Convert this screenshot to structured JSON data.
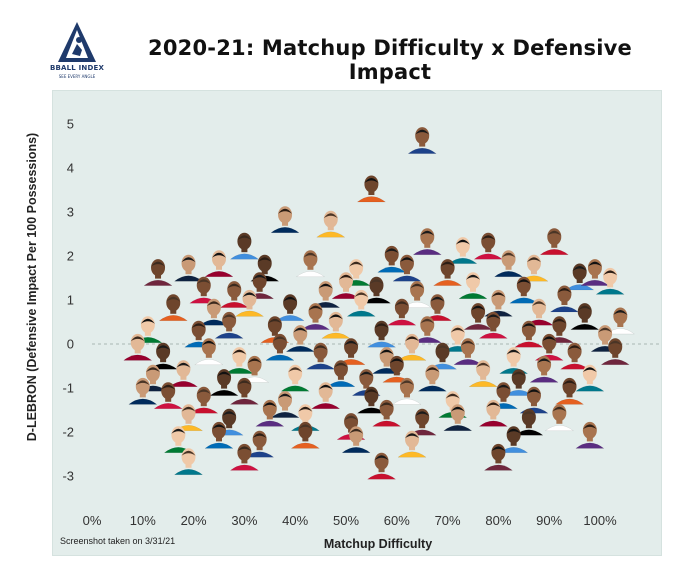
{
  "logo": {
    "name": "BBALL INDEX",
    "tagline": "SEE EVERY ANGLE"
  },
  "title": "2020-21: Matchup Difficulty x Defensive Impact",
  "footnote": "Screenshot taken on 3/31/21",
  "colors": {
    "plot_background": "#e3edeb",
    "reference_line": "#a9b7b3",
    "logo": "#1f3a6b"
  },
  "chart_data": {
    "type": "scatter",
    "title": "2020-21: Matchup Difficulty x Defensive Impact",
    "xlabel": "Matchup Difficulty",
    "ylabel": "D-LEBRON (Defensive Impact Per 100 Possessions)",
    "xlim": [
      -3,
      108
    ],
    "ylim": [
      -3.75,
      5.4
    ],
    "x_ticks": [
      0,
      10,
      20,
      30,
      40,
      50,
      60,
      70,
      80,
      90,
      100
    ],
    "x_tick_labels": [
      "0%",
      "10%",
      "20%",
      "30%",
      "40%",
      "50%",
      "60%",
      "70%",
      "80%",
      "90%",
      "100%"
    ],
    "y_ticks": [
      5,
      4,
      3,
      2,
      1,
      0,
      -1,
      -2,
      -3
    ],
    "y_tick_labels": [
      "5",
      "4",
      "3",
      "2",
      "1",
      "0",
      "-1",
      "-2",
      "-3"
    ],
    "reference_line_y": 0,
    "grid": false,
    "marker": "player headshot",
    "points": [
      {
        "x": 65,
        "y": 4.6
      },
      {
        "x": 55,
        "y": 3.5
      },
      {
        "x": 38,
        "y": 2.8
      },
      {
        "x": 47,
        "y": 2.7
      },
      {
        "x": 30,
        "y": 2.2
      },
      {
        "x": 66,
        "y": 2.3
      },
      {
        "x": 73,
        "y": 2.1
      },
      {
        "x": 78,
        "y": 2.2
      },
      {
        "x": 91,
        "y": 2.3
      },
      {
        "x": 13,
        "y": 1.6
      },
      {
        "x": 19,
        "y": 1.7
      },
      {
        "x": 25,
        "y": 1.8
      },
      {
        "x": 34,
        "y": 1.7
      },
      {
        "x": 43,
        "y": 1.8
      },
      {
        "x": 52,
        "y": 1.6
      },
      {
        "x": 59,
        "y": 1.9
      },
      {
        "x": 62,
        "y": 1.7
      },
      {
        "x": 70,
        "y": 1.6
      },
      {
        "x": 82,
        "y": 1.8
      },
      {
        "x": 87,
        "y": 1.7
      },
      {
        "x": 96,
        "y": 1.5
      },
      {
        "x": 99,
        "y": 1.6
      },
      {
        "x": 102,
        "y": 1.4
      },
      {
        "x": 22,
        "y": 1.2
      },
      {
        "x": 28,
        "y": 1.1
      },
      {
        "x": 33,
        "y": 1.3
      },
      {
        "x": 46,
        "y": 1.1
      },
      {
        "x": 50,
        "y": 1.3
      },
      {
        "x": 56,
        "y": 1.2
      },
      {
        "x": 64,
        "y": 1.1
      },
      {
        "x": 75,
        "y": 1.3
      },
      {
        "x": 85,
        "y": 1.2
      },
      {
        "x": 93,
        "y": 1.0
      },
      {
        "x": 16,
        "y": 0.8
      },
      {
        "x": 24,
        "y": 0.7
      },
      {
        "x": 31,
        "y": 0.9
      },
      {
        "x": 39,
        "y": 0.8
      },
      {
        "x": 44,
        "y": 0.6
      },
      {
        "x": 53,
        "y": 0.9
      },
      {
        "x": 61,
        "y": 0.7
      },
      {
        "x": 68,
        "y": 0.8
      },
      {
        "x": 76,
        "y": 0.6
      },
      {
        "x": 80,
        "y": 0.9
      },
      {
        "x": 88,
        "y": 0.7
      },
      {
        "x": 97,
        "y": 0.6
      },
      {
        "x": 104,
        "y": 0.5
      },
      {
        "x": 11,
        "y": 0.3
      },
      {
        "x": 21,
        "y": 0.2
      },
      {
        "x": 27,
        "y": 0.4
      },
      {
        "x": 36,
        "y": 0.3
      },
      {
        "x": 41,
        "y": 0.1
      },
      {
        "x": 48,
        "y": 0.4
      },
      {
        "x": 57,
        "y": 0.2
      },
      {
        "x": 66,
        "y": 0.3
      },
      {
        "x": 72,
        "y": 0.1
      },
      {
        "x": 79,
        "y": 0.4
      },
      {
        "x": 86,
        "y": 0.2
      },
      {
        "x": 92,
        "y": 0.3
      },
      {
        "x": 101,
        "y": 0.1
      },
      {
        "x": 9,
        "y": -0.1
      },
      {
        "x": 14,
        "y": -0.3
      },
      {
        "x": 23,
        "y": -0.2
      },
      {
        "x": 29,
        "y": -0.4
      },
      {
        "x": 37,
        "y": -0.1
      },
      {
        "x": 45,
        "y": -0.3
      },
      {
        "x": 51,
        "y": -0.2
      },
      {
        "x": 58,
        "y": -0.4
      },
      {
        "x": 63,
        "y": -0.1
      },
      {
        "x": 69,
        "y": -0.3
      },
      {
        "x": 74,
        "y": -0.2
      },
      {
        "x": 83,
        "y": -0.4
      },
      {
        "x": 90,
        "y": -0.1
      },
      {
        "x": 95,
        "y": -0.3
      },
      {
        "x": 103,
        "y": -0.2
      },
      {
        "x": 12,
        "y": -0.8
      },
      {
        "x": 18,
        "y": -0.7
      },
      {
        "x": 26,
        "y": -0.9
      },
      {
        "x": 32,
        "y": -0.6
      },
      {
        "x": 40,
        "y": -0.8
      },
      {
        "x": 49,
        "y": -0.7
      },
      {
        "x": 54,
        "y": -0.9
      },
      {
        "x": 60,
        "y": -0.6
      },
      {
        "x": 67,
        "y": -0.8
      },
      {
        "x": 77,
        "y": -0.7
      },
      {
        "x": 84,
        "y": -0.9
      },
      {
        "x": 89,
        "y": -0.6
      },
      {
        "x": 98,
        "y": -0.8
      },
      {
        "x": 15,
        "y": -1.2
      },
      {
        "x": 22,
        "y": -1.3
      },
      {
        "x": 30,
        "y": -1.1
      },
      {
        "x": 38,
        "y": -1.4
      },
      {
        "x": 46,
        "y": -1.2
      },
      {
        "x": 55,
        "y": -1.3
      },
      {
        "x": 62,
        "y": -1.1
      },
      {
        "x": 71,
        "y": -1.4
      },
      {
        "x": 81,
        "y": -1.2
      },
      {
        "x": 87,
        "y": -1.3
      },
      {
        "x": 94,
        "y": -1.1
      },
      {
        "x": 10,
        "y": -1.1
      },
      {
        "x": 19,
        "y": -1.7
      },
      {
        "x": 27,
        "y": -1.8
      },
      {
        "x": 35,
        "y": -1.6
      },
      {
        "x": 42,
        "y": -1.7
      },
      {
        "x": 51,
        "y": -1.9
      },
      {
        "x": 58,
        "y": -1.6
      },
      {
        "x": 65,
        "y": -1.8
      },
      {
        "x": 72,
        "y": -1.7
      },
      {
        "x": 79,
        "y": -1.6
      },
      {
        "x": 86,
        "y": -1.8
      },
      {
        "x": 92,
        "y": -1.7
      },
      {
        "x": 17,
        "y": -2.2
      },
      {
        "x": 25,
        "y": -2.1
      },
      {
        "x": 33,
        "y": -2.3
      },
      {
        "x": 42,
        "y": -2.1
      },
      {
        "x": 52,
        "y": -2.2
      },
      {
        "x": 63,
        "y": -2.3
      },
      {
        "x": 83,
        "y": -2.2
      },
      {
        "x": 98,
        "y": -2.1
      },
      {
        "x": 19,
        "y": -2.7
      },
      {
        "x": 30,
        "y": -2.6
      },
      {
        "x": 57,
        "y": -2.8
      },
      {
        "x": 80,
        "y": -2.6
      }
    ]
  }
}
